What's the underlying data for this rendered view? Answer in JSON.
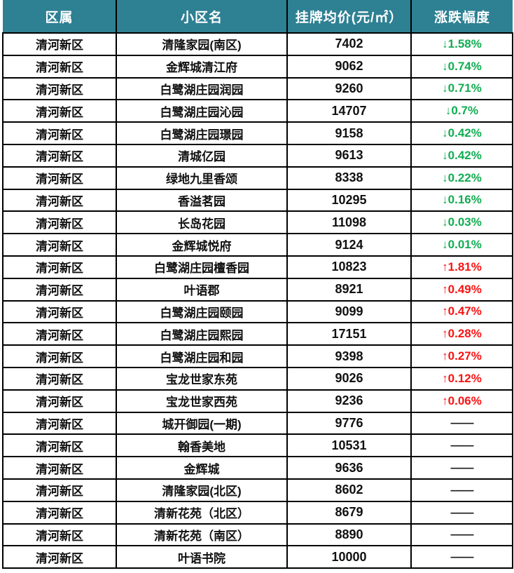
{
  "colors": {
    "header_bg": "#2e8093",
    "header_text": "#ffffff",
    "down_green": "#12ad52",
    "up_red": "#f81414",
    "flat_dash": "#1a1a1a",
    "grid_border": "#000000"
  },
  "chart_data": {
    "type": "table",
    "columns": [
      "区属",
      "小区名",
      "挂牌均价(元/㎡）",
      "涨跌幅度"
    ],
    "rows": [
      {
        "district": "清河新区",
        "name": "清隆家园(南区)",
        "price": "7402",
        "change": "↓1.58%",
        "trend": "down"
      },
      {
        "district": "清河新区",
        "name": "金辉城清江府",
        "price": "9062",
        "change": "↓0.74%",
        "trend": "down"
      },
      {
        "district": "清河新区",
        "name": "白鹭湖庄园润园",
        "price": "9260",
        "change": "↓0.71%",
        "trend": "down"
      },
      {
        "district": "清河新区",
        "name": "白鹭湖庄园沁园",
        "price": "14707",
        "change": "↓0.7%",
        "trend": "down"
      },
      {
        "district": "清河新区",
        "name": "白鹭湖庄园璟园",
        "price": "9158",
        "change": "↓0.42%",
        "trend": "down"
      },
      {
        "district": "清河新区",
        "name": "清城亿园",
        "price": "9613",
        "change": "↓0.42%",
        "trend": "down"
      },
      {
        "district": "清河新区",
        "name": "绿地九里香颂",
        "price": "8338",
        "change": "↓0.22%",
        "trend": "down"
      },
      {
        "district": "清河新区",
        "name": "香溢茗园",
        "price": "10295",
        "change": "↓0.16%",
        "trend": "down"
      },
      {
        "district": "清河新区",
        "name": "长岛花园",
        "price": "11098",
        "change": "↓0.03%",
        "trend": "down"
      },
      {
        "district": "清河新区",
        "name": "金辉城悦府",
        "price": "9124",
        "change": "↓0.01%",
        "trend": "down"
      },
      {
        "district": "清河新区",
        "name": "白鹭湖庄园檀香园",
        "price": "10823",
        "change": "↑1.81%",
        "trend": "up"
      },
      {
        "district": "清河新区",
        "name": "叶语郡",
        "price": "8921",
        "change": "↑0.49%",
        "trend": "up"
      },
      {
        "district": "清河新区",
        "name": "白鹭湖庄园颐园",
        "price": "9099",
        "change": "↑0.47%",
        "trend": "up"
      },
      {
        "district": "清河新区",
        "name": "白鹭湖庄园熙园",
        "price": "17151",
        "change": "↑0.28%",
        "trend": "up"
      },
      {
        "district": "清河新区",
        "name": "白鹭湖庄园和园",
        "price": "9398",
        "change": "↑0.27%",
        "trend": "up"
      },
      {
        "district": "清河新区",
        "name": "宝龙世家东苑",
        "price": "9026",
        "change": "↑0.12%",
        "trend": "up"
      },
      {
        "district": "清河新区",
        "name": "宝龙世家西苑",
        "price": "9236",
        "change": "↑0.06%",
        "trend": "up"
      },
      {
        "district": "清河新区",
        "name": "城开御园(一期)",
        "price": "9776",
        "change": "——",
        "trend": "flat"
      },
      {
        "district": "清河新区",
        "name": "翰香美地",
        "price": "10531",
        "change": "——",
        "trend": "flat"
      },
      {
        "district": "清河新区",
        "name": "金辉城",
        "price": "9636",
        "change": "——",
        "trend": "flat"
      },
      {
        "district": "清河新区",
        "name": "清隆家园(北区)",
        "price": "8602",
        "change": "——",
        "trend": "flat"
      },
      {
        "district": "清河新区",
        "name": "清新花苑（北区）",
        "price": "8679",
        "change": "——",
        "trend": "flat"
      },
      {
        "district": "清河新区",
        "name": "清新花苑（南区）",
        "price": "8890",
        "change": "——",
        "trend": "flat"
      },
      {
        "district": "清河新区",
        "name": "叶语书院",
        "price": "10000",
        "change": "——",
        "trend": "flat"
      }
    ]
  }
}
